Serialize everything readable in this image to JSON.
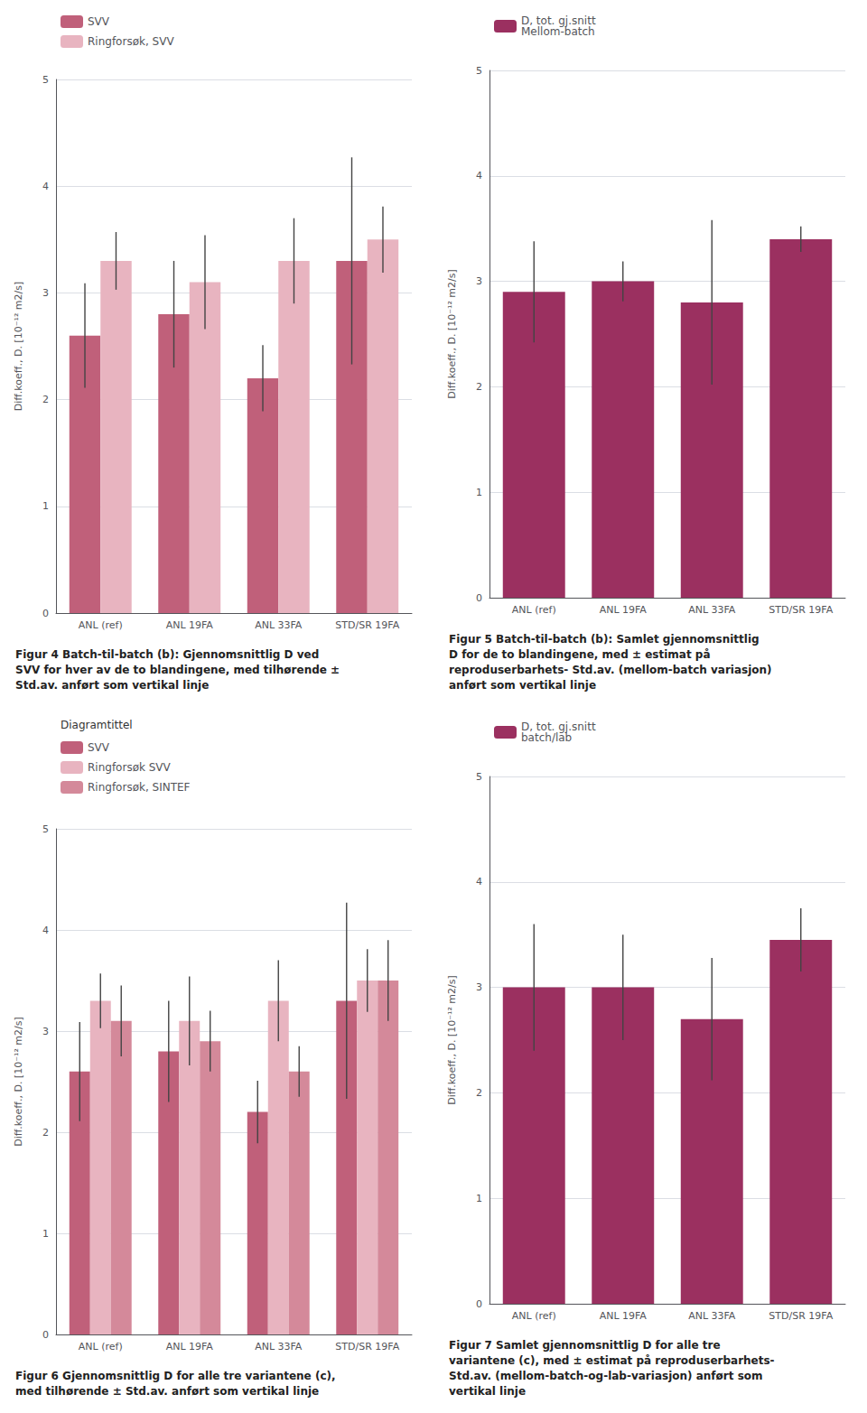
{
  "chart_data": [
    {
      "type": "bar",
      "title": "Figur 4 Batch-til-batch (b): Gjennomsnittlig D ved\nSVV for hver av de to blandingene, med tilhørende ±\nStd.av. anført som vertikal linje",
      "categories": [
        "ANL (ref)",
        "ANL 19FA",
        "ANL 33FA",
        "STD/SR 19FA"
      ],
      "series": [
        {
          "name": "SVV",
          "color": "#c0607a",
          "values": [
            2.6,
            2.8,
            2.2,
            3.3
          ],
          "errors": [
            0.49,
            0.5,
            0.31,
            0.97
          ]
        },
        {
          "name": "Ringforsøk, SVV",
          "color": "#e8b4c0",
          "values": [
            3.3,
            3.1,
            3.3,
            3.5
          ],
          "errors": [
            0.27,
            0.44,
            0.4,
            0.31
          ]
        }
      ],
      "ylabel": "Diff.koeff., D. [10⁻¹² m2/s]",
      "ylim": [
        0,
        5
      ],
      "yticks": [
        0,
        1,
        2,
        3,
        4,
        5
      ],
      "grid": true,
      "legend": "upper left"
    },
    {
      "type": "bar",
      "title": "Figur 5 Batch-til-batch (b): Samlet gjennomsnittlig\nD for de to blandingene, med ± estimat på\nreproduserbarhets- Std.av. (mellom-batch variasjon)\nanført som vertikal linje",
      "categories": [
        "ANL (ref)",
        "ANL 19FA",
        "ANL 33FA",
        "STD/SR 19FA"
      ],
      "series": [
        {
          "name": "D, tot. gj.snitt\nMellom-batch",
          "color": "#9b3060",
          "values": [
            2.9,
            3.0,
            2.8,
            3.4
          ],
          "errors": [
            0.48,
            0.19,
            0.78,
            0.12
          ]
        }
      ],
      "ylabel": "Diff.koeff., D. [10⁻¹² m2/s]",
      "ylim": [
        0,
        5
      ],
      "yticks": [
        0,
        1,
        2,
        3,
        4,
        5
      ],
      "grid": true,
      "legend": "upper left"
    },
    {
      "type": "bar",
      "title": "Figur 6 Gjennomsnittlig D for alle tre variantene (c),\nmed tilhørende ± Std.av. anført som vertikal linje",
      "categories": [
        "ANL (ref)",
        "ANL 19FA",
        "ANL 33FA",
        "STD/SR 19FA"
      ],
      "series": [
        {
          "name": "SVV",
          "color": "#c0607a",
          "values": [
            2.6,
            2.8,
            2.2,
            3.3
          ],
          "errors": [
            0.49,
            0.5,
            0.31,
            0.97
          ]
        },
        {
          "name": "Ringforsøk SVV",
          "color": "#e8b4c0",
          "values": [
            3.3,
            3.1,
            3.3,
            3.5
          ],
          "errors": [
            0.27,
            0.44,
            0.4,
            0.31
          ]
        },
        {
          "name": "Ringforsøk, SINTEF",
          "color": "#d4899a",
          "values": [
            3.1,
            2.9,
            2.6,
            3.5
          ],
          "errors": [
            0.35,
            0.3,
            0.25,
            0.4
          ]
        }
      ],
      "legend_title": "Diagramtittel",
      "ylabel": "Diff.koeff., D. [10⁻¹² m2/s]",
      "ylim": [
        0,
        5
      ],
      "yticks": [
        0,
        1,
        2,
        3,
        4,
        5
      ],
      "grid": true,
      "legend": "upper left"
    },
    {
      "type": "bar",
      "title": "Figur 7 Samlet gjennomsnittlig D for alle tre\nvariantene (c), med ± estimat på reproduserbarhets-\nStd.av. (mellom-batch-og-lab-variasjon) anført som\nvertikal linje",
      "categories": [
        "ANL (ref)",
        "ANL 19FA",
        "ANL 33FA",
        "STD/SR 19FA"
      ],
      "series": [
        {
          "name": "D, tot. gj.snitt\nbatch/lab",
          "color": "#9b3060",
          "values": [
            3.0,
            3.0,
            2.7,
            3.45
          ],
          "errors": [
            0.6,
            0.5,
            0.58,
            0.3
          ]
        }
      ],
      "ylabel": "Diff.koeff., D. [10⁻¹² m2/s]",
      "ylim": [
        0,
        5
      ],
      "yticks": [
        0,
        1,
        2,
        3,
        4,
        5
      ],
      "grid": true,
      "legend": "upper left"
    }
  ]
}
